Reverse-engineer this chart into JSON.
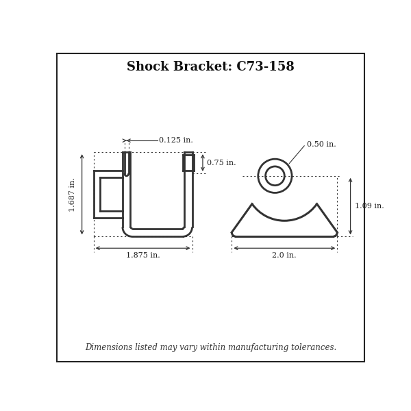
{
  "title": "Shock Bracket: C73-158",
  "footer": "Dimensions listed may vary within manufacturing tolerances.",
  "bg_color": "#ffffff",
  "border_color": "#222222",
  "line_color": "#333333",
  "dim_color": "#333333",
  "annotations": {
    "width_label": "1.875 in.",
    "height_label": "1.687 in.",
    "slot_width_label": "0.125 in.",
    "slot_height_label": "0.75 in.",
    "side_width_label": "2.0 in.",
    "side_height_label": "1.09 in.",
    "hole_label": "0.50 in."
  }
}
